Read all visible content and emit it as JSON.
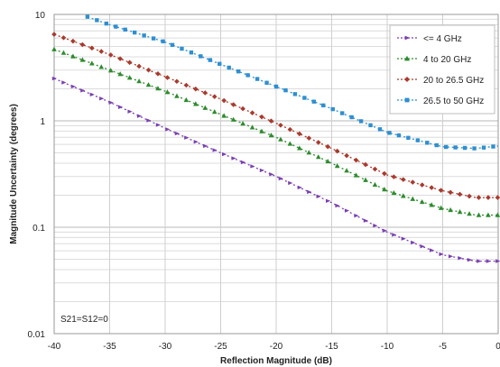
{
  "chart_data": {
    "type": "line",
    "title": "",
    "xlabel": "Reflection Magnitude (dB)",
    "ylabel": "Magnitude Uncertainty (degrees)",
    "xlim": [
      -40,
      0
    ],
    "ylim": [
      0.01,
      10
    ],
    "y_scale": "log",
    "x_ticks": [
      -40,
      -35,
      -30,
      -25,
      -20,
      -15,
      -10,
      -5,
      0
    ],
    "x_tick_labels": [
      "-40",
      "-35",
      "-30",
      "-25",
      "-20",
      "-15",
      "-10",
      "-5",
      "0"
    ],
    "y_ticks": [
      0.01,
      0.1,
      1,
      10
    ],
    "y_tick_labels": [
      "0.01",
      "0.1",
      "1",
      "10"
    ],
    "grid": true,
    "legend_position": "top-right",
    "annotation": "S21=S12=0",
    "series": [
      {
        "name": "<= 4 GHz",
        "color": "#7b3fb0",
        "marker": "triangle-right",
        "x": [
          -40,
          -35,
          -30,
          -25,
          -20,
          -15,
          -10,
          -5,
          -2,
          0
        ],
        "y": [
          2.5,
          1.5,
          0.85,
          0.5,
          0.3,
          0.17,
          0.09,
          0.055,
          0.048,
          0.048
        ]
      },
      {
        "name": "4 to 20 GHz",
        "color": "#2e8b2e",
        "marker": "triangle-up",
        "x": [
          -40,
          -35,
          -30,
          -25,
          -20,
          -15,
          -10,
          -5,
          -2,
          0
        ],
        "y": [
          4.7,
          3.0,
          1.9,
          1.15,
          0.7,
          0.4,
          0.22,
          0.15,
          0.13,
          0.13
        ]
      },
      {
        "name": "20 to 26.5 GHz",
        "color": "#a83a2e",
        "marker": "diamond",
        "x": [
          -40,
          -35,
          -30,
          -25,
          -20,
          -15,
          -10,
          -5,
          -2,
          0
        ],
        "y": [
          6.5,
          4.2,
          2.6,
          1.6,
          0.95,
          0.55,
          0.31,
          0.22,
          0.19,
          0.19
        ]
      },
      {
        "name": "26.5 to 50 GHz",
        "color": "#2e8fd0",
        "marker": "square",
        "x": [
          -37,
          -35,
          -30,
          -25,
          -20,
          -15,
          -10,
          -5,
          -2,
          0
        ],
        "y": [
          9.5,
          8.0,
          5.5,
          3.4,
          2.1,
          1.3,
          0.78,
          0.57,
          0.55,
          0.58
        ]
      }
    ]
  }
}
